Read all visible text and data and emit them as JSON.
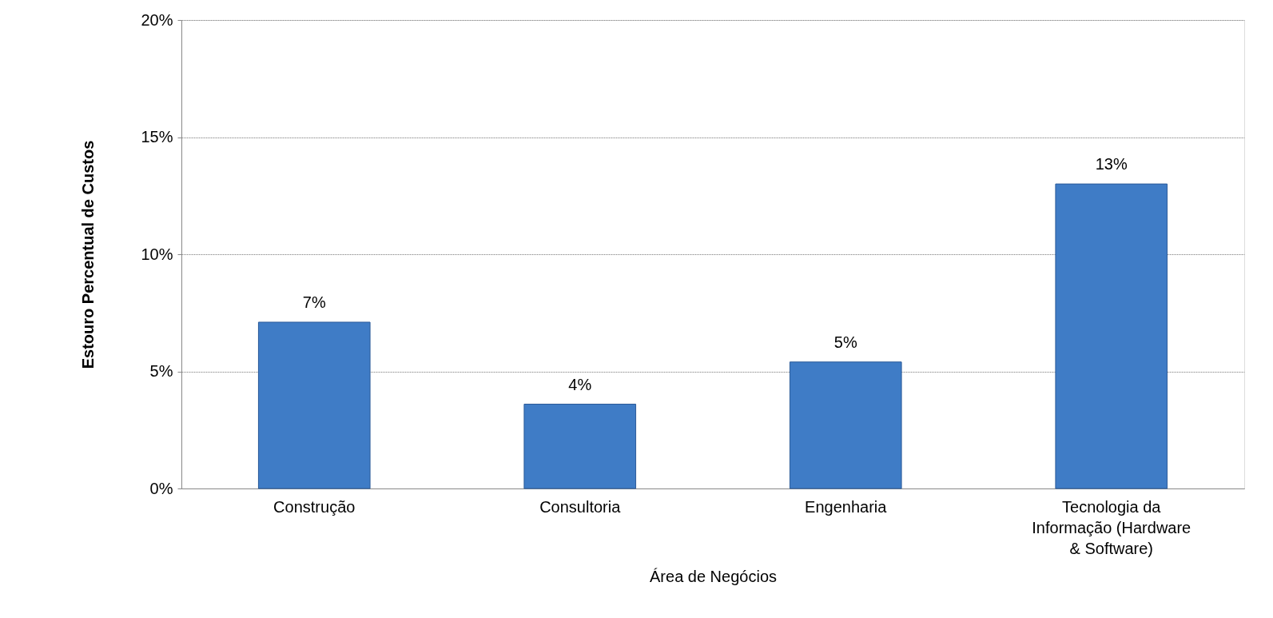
{
  "chart_data": {
    "type": "bar",
    "xlabel": "Área de Negócios",
    "ylabel": "Estouro Percentual de Custos",
    "categories": [
      "Construção",
      "Consultoria",
      "Engenharia",
      "Tecnologia da Informação (Hardware & Software)"
    ],
    "values": [
      7.1,
      3.6,
      5.4,
      13.0
    ],
    "value_labels": [
      "7%",
      "4%",
      "5%",
      "13%"
    ],
    "color": "#3f7cc6",
    "ylim": [
      0,
      20
    ],
    "yticks": [
      {
        "value": 0,
        "label": "0%"
      },
      {
        "value": 5,
        "label": "5%"
      },
      {
        "value": 10,
        "label": "10%"
      },
      {
        "value": 15,
        "label": "15%"
      },
      {
        "value": 20,
        "label": "20%"
      }
    ],
    "grid": "y"
  }
}
